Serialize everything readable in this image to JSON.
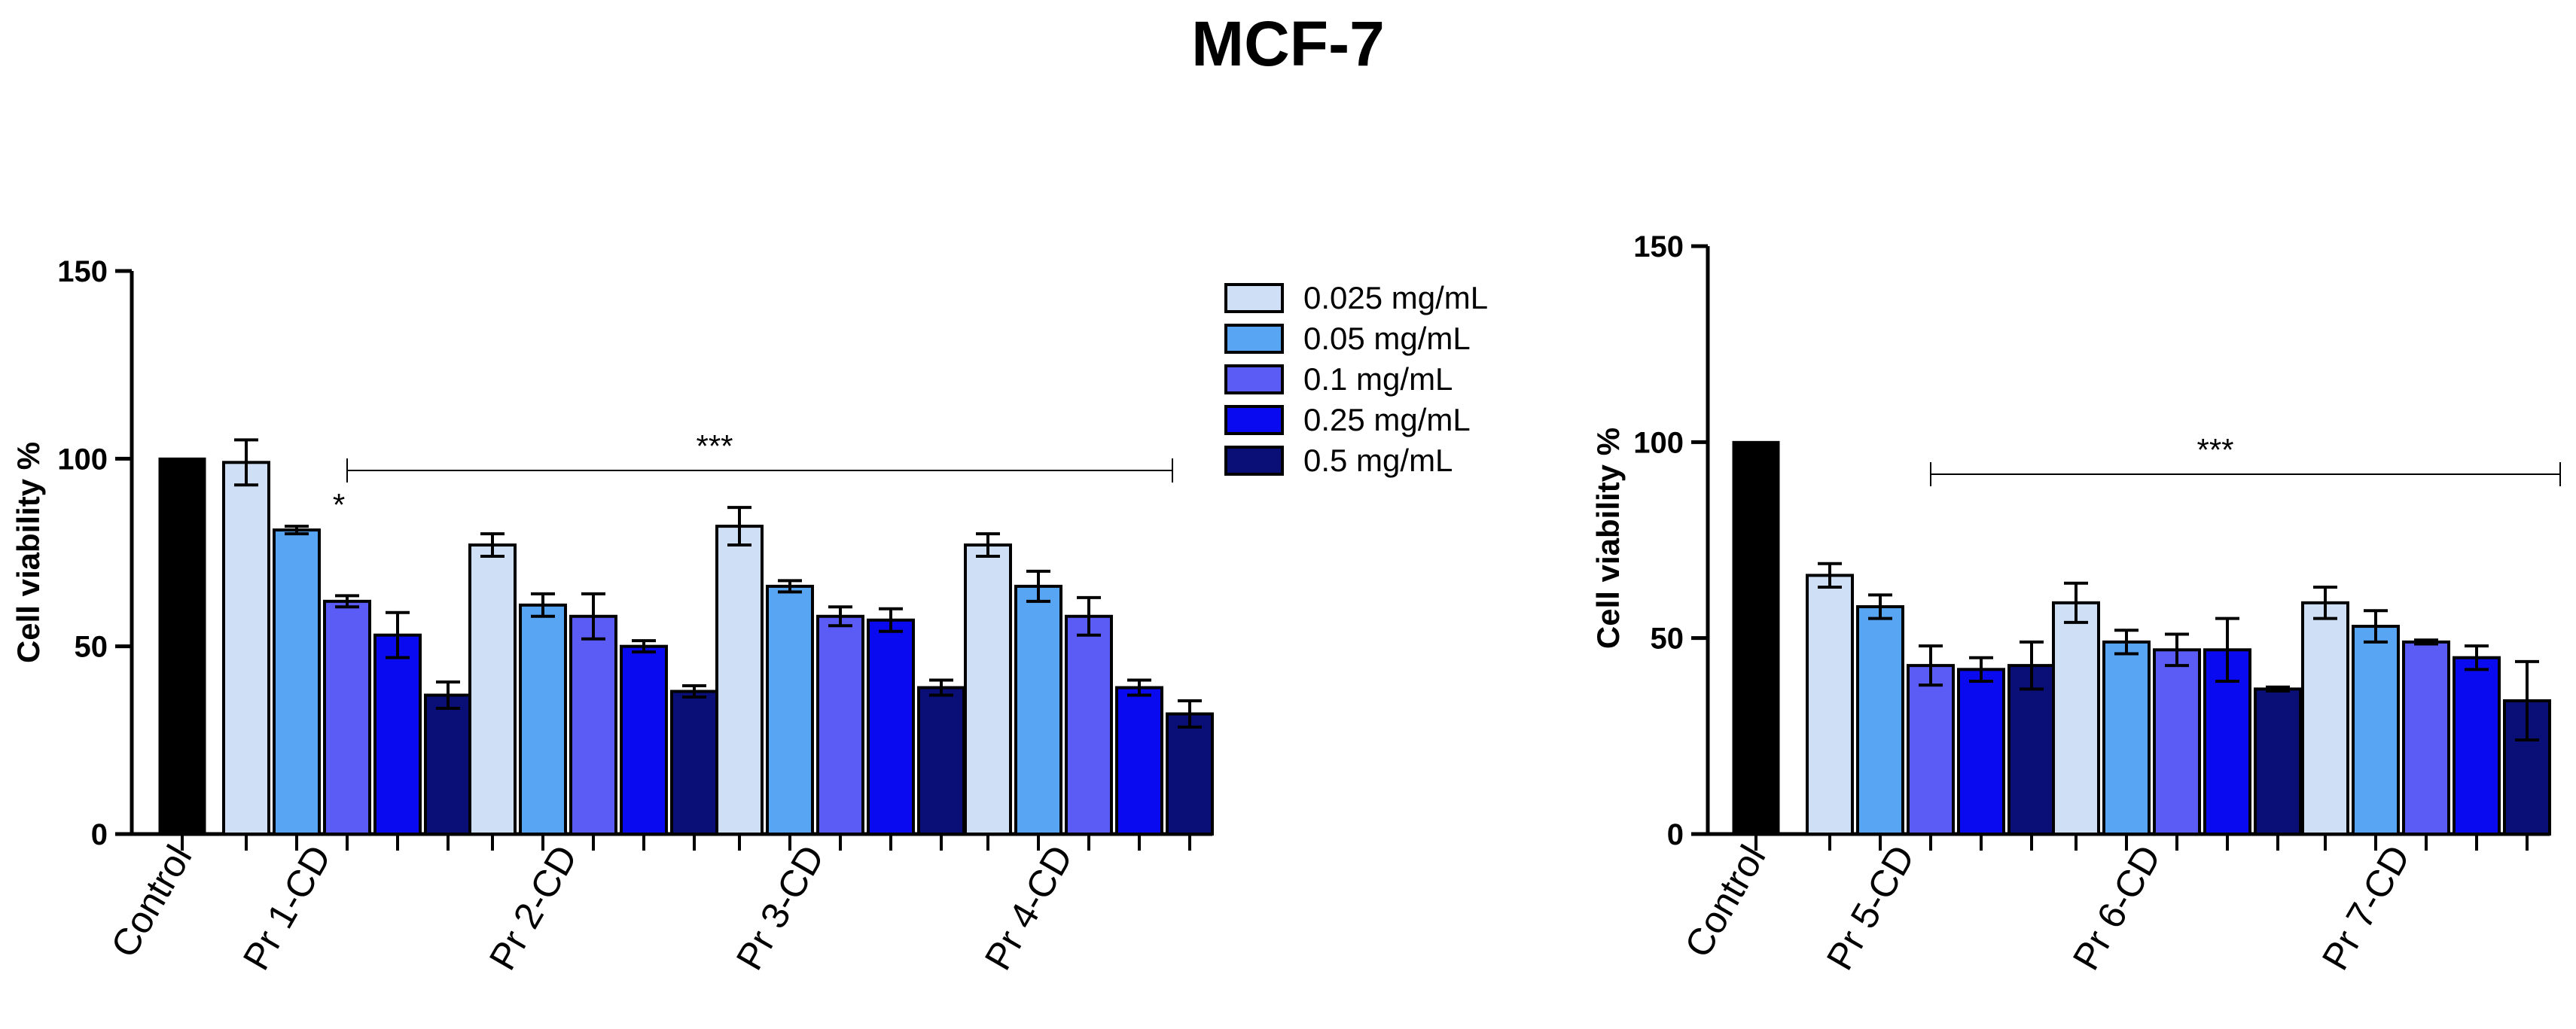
{
  "title": "MCF-7",
  "colors": {
    "control": "#000000",
    "c0": "#cfe0f6",
    "c1": "#57a5f3",
    "c2": "#5b5bf5",
    "c3": "#0a0af0",
    "c4": "#0a0f78"
  },
  "chart_data": [
    {
      "type": "bar",
      "ylabel": "Cell viability  %",
      "ylim": [
        0,
        150
      ],
      "yticks": [
        0,
        50,
        100,
        150
      ],
      "legend": [
        "0.025 mg/mL",
        "0.05 mg/mL",
        "0.1 mg/mL",
        "0.25 mg/mL",
        "0.5 mg/mL"
      ],
      "legend_position": "right",
      "control": {
        "label": "Control",
        "value": 100
      },
      "categories": [
        "Pr 1-CD",
        "Pr 2-CD",
        "Pr 3-CD",
        "Pr 4-CD"
      ],
      "series": [
        {
          "name": "0.025 mg/mL",
          "values": [
            99,
            77,
            82,
            77
          ],
          "errors": [
            6,
            3,
            5,
            3
          ]
        },
        {
          "name": "0.05 mg/mL",
          "values": [
            81,
            61,
            66,
            66
          ],
          "errors": [
            1,
            3,
            1.5,
            4
          ]
        },
        {
          "name": "0.1 mg/mL",
          "values": [
            62,
            58,
            58,
            58
          ],
          "errors": [
            1.5,
            6,
            2.5,
            5
          ]
        },
        {
          "name": "0.25 mg/mL",
          "values": [
            53,
            50,
            57,
            39
          ],
          "errors": [
            6,
            1.5,
            3,
            2
          ]
        },
        {
          "name": "0.5 mg/mL",
          "values": [
            37,
            38,
            39,
            32
          ],
          "errors": [
            3.5,
            1.5,
            2,
            3.5
          ]
        }
      ],
      "annotations": [
        {
          "text": "*",
          "group": 0,
          "bar": 1
        },
        {
          "text": "***",
          "span_from_group": 0,
          "span_to_group": 3
        }
      ]
    },
    {
      "type": "bar",
      "ylabel": "Cell viability  %",
      "ylim": [
        0,
        150
      ],
      "yticks": [
        0,
        50,
        100,
        150
      ],
      "control": {
        "label": "Control",
        "value": 100
      },
      "categories": [
        "Pr 5-CD",
        "Pr 6-CD",
        "Pr 7-CD"
      ],
      "series": [
        {
          "name": "0.025 mg/mL",
          "values": [
            66,
            59,
            59
          ],
          "errors": [
            3,
            5,
            4
          ]
        },
        {
          "name": "0.05 mg/mL",
          "values": [
            58,
            49,
            53
          ],
          "errors": [
            3,
            3,
            4
          ]
        },
        {
          "name": "0.1 mg/mL",
          "values": [
            43,
            47,
            49
          ],
          "errors": [
            5,
            4,
            0.5
          ]
        },
        {
          "name": "0.25 mg/mL",
          "values": [
            42,
            47,
            45
          ],
          "errors": [
            3,
            8,
            3
          ]
        },
        {
          "name": "0.5 mg/mL",
          "values": [
            43,
            37,
            34
          ],
          "errors": [
            6,
            0.5,
            10
          ]
        }
      ],
      "annotations": [
        {
          "text": "***",
          "span_from_group": 0,
          "span_to_group": 2
        }
      ]
    }
  ]
}
